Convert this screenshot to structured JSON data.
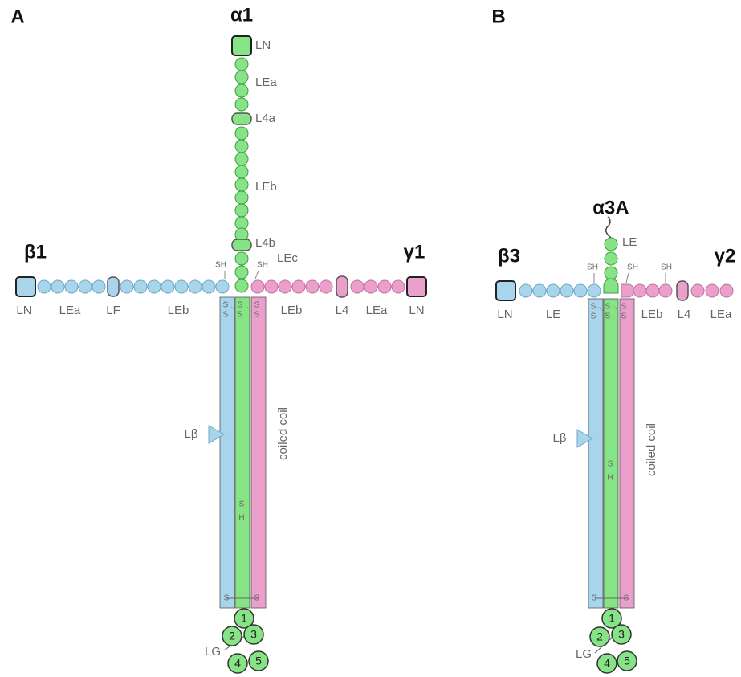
{
  "panels": [
    {
      "label": "A",
      "chains": [
        "α1",
        "β1",
        "γ1"
      ],
      "domains": [
        "LN",
        "LEa",
        "L4a",
        "LEb",
        "L4b",
        "LEc",
        "LN",
        "LEa",
        "LF",
        "LEb",
        "LEb",
        "L4",
        "LEa",
        "LN"
      ],
      "sh": [
        "SH",
        "SH"
      ],
      "disulfide": [
        "S",
        "S",
        "S",
        "S",
        "S",
        "S"
      ],
      "beta_label": "Lβ",
      "coil_label": "coiled coil",
      "rod_sh": [
        "S",
        "H"
      ],
      "bottom_s": [
        "S",
        "S"
      ],
      "lg_label": "LG",
      "lg_modules": [
        "1",
        "2",
        "3",
        "4",
        "5"
      ]
    },
    {
      "label": "B",
      "chains": [
        "α3A",
        "β3",
        "γ2"
      ],
      "domains": [
        "LE",
        "LN",
        "LE",
        "LEb",
        "L4",
        "LEa"
      ],
      "sh": [
        "SH",
        "SH",
        "SH"
      ],
      "disulfide": [
        "S",
        "S",
        "S",
        "S",
        "S",
        "S"
      ],
      "beta_label": "Lβ",
      "coil_label": "coiled coil",
      "rod_sh": [
        "S",
        "H"
      ],
      "bottom_s": [
        "S",
        "S"
      ],
      "lg_label": "LG",
      "lg_modules": [
        "1",
        "2",
        "3",
        "4",
        "5"
      ]
    }
  ]
}
